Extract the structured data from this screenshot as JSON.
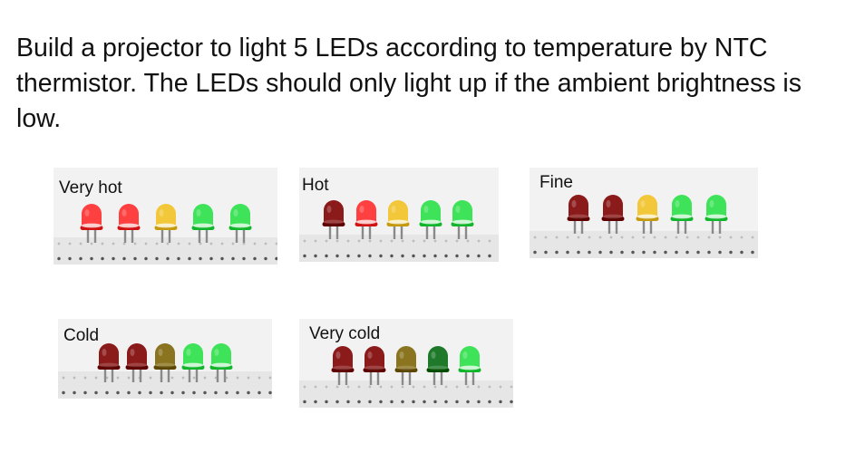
{
  "title": "Build a projector to light 5 LEDs according to temperature by NTC thermistor. The LEDs should only light up if the ambient brightness is low.",
  "colors": {
    "red_on": "#ff4040",
    "red_off": "#8b1a1a",
    "yellow_on": "#f2c83a",
    "yellow_off": "#8a7420",
    "green_on": "#3fe35a",
    "green_off": "#1e7a2a"
  },
  "panels": [
    {
      "label": "Very hot",
      "leds": [
        "red_on",
        "red_on",
        "yellow_on",
        "green_on",
        "green_on"
      ]
    },
    {
      "label": "Hot",
      "leds": [
        "red_off",
        "red_on",
        "yellow_on",
        "green_on",
        "green_on"
      ]
    },
    {
      "label": "Fine",
      "leds": [
        "red_off",
        "red_off",
        "yellow_on",
        "green_on",
        "green_on"
      ]
    },
    {
      "label": "Cold",
      "leds": [
        "red_off",
        "red_off",
        "yellow_off",
        "green_on",
        "green_on"
      ]
    },
    {
      "label": "Very cold",
      "leds": [
        "red_off",
        "red_off",
        "yellow_off",
        "green_off",
        "green_on"
      ]
    }
  ]
}
